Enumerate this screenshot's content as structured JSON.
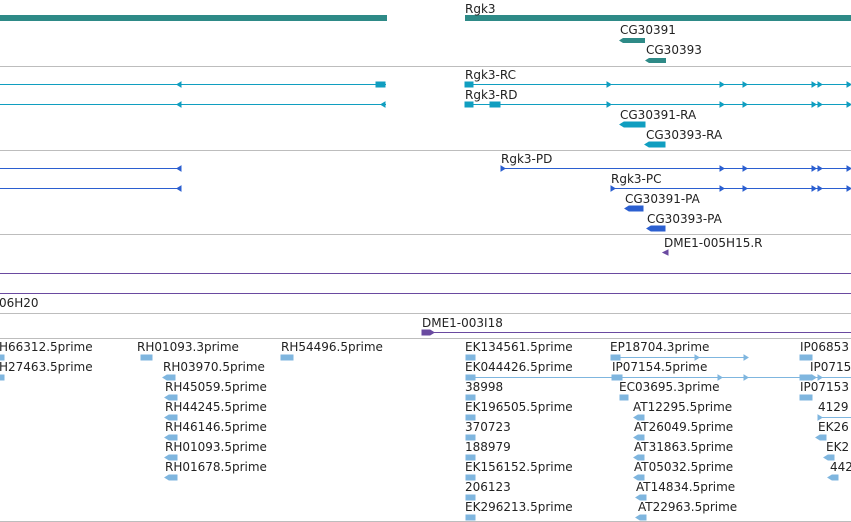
{
  "colors": {
    "gene": "#2e8a87",
    "transcript": "#109ec0",
    "protein": "#2b5fd0",
    "oligo": "#6a4aa0",
    "est": "#7fb6df",
    "separator": "#bdbdbd"
  },
  "genes": {
    "rgk3": "Rgk3",
    "cg30391": "CG30391",
    "cg30393": "CG30393"
  },
  "transcripts": {
    "rgk3_rc": "Rgk3-RC",
    "rgk3_rd": "Rgk3-RD",
    "cg30391_ra": "CG30391-RA",
    "cg30393_ra": "CG30393-RA"
  },
  "proteins": {
    "rgk3_pd": "Rgk3-PD",
    "rgk3_pc": "Rgk3-PC",
    "cg30391_pa": "CG30391-PA",
    "cg30393_pa": "CG30393-PA"
  },
  "oligos": {
    "dme1_005h15": "DME1-005H15.R",
    "partial_06h20": "06H20",
    "dme1_003i18": "DME1-003I18"
  },
  "ests": {
    "col1": [
      "H66312.5prime",
      "H27463.5prime"
    ],
    "col2": [
      "RH01093.3prime",
      "RH03970.5prime",
      "RH45059.5prime",
      "RH44245.5prime",
      "RH46146.5prime",
      "RH01093.5prime",
      "RH01678.5prime"
    ],
    "col3": [
      "RH54496.5prime"
    ],
    "col4": [
      "EK134561.5prime",
      "EK044426.5prime",
      "38998",
      "EK196505.5prime",
      "370723",
      "188979",
      "EK156152.5prime",
      "206123",
      "EK296213.5prime"
    ],
    "col5": [
      "EP18704.3prime",
      "IP07154.5prime",
      "EC03695.3prime",
      "AT12295.5prime",
      "AT26049.5prime",
      "AT31863.5prime",
      "AT05032.5prime",
      "AT14834.5prime",
      "AT22963.5prime"
    ],
    "col6": [
      "IP06853",
      "IP0715",
      "IP07153",
      "4129",
      "EK26",
      "EK2",
      "442"
    ]
  }
}
